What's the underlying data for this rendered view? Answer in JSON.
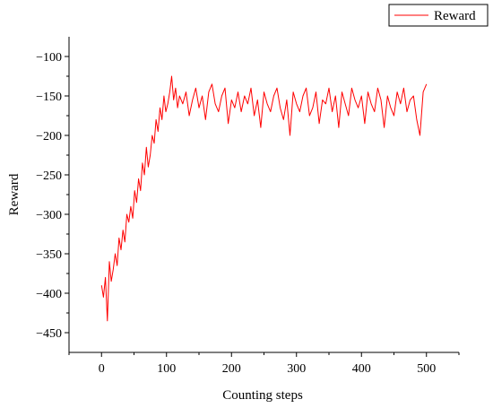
{
  "chart_data": {
    "type": "line",
    "title": "",
    "xlabel": "Counting steps",
    "ylabel": "Reward",
    "xlim": [
      -50,
      550
    ],
    "ylim": [
      -475,
      -75
    ],
    "xticks": [
      0,
      100,
      200,
      300,
      400,
      500
    ],
    "yticks": [
      -450,
      -400,
      -350,
      -300,
      -250,
      -200,
      -150,
      -100
    ],
    "grid": false,
    "legend_position": "top-right",
    "series": [
      {
        "name": "Reward",
        "color": "#ff0000",
        "x": [
          0,
          3,
          6,
          9,
          12,
          15,
          18,
          21,
          24,
          27,
          30,
          33,
          36,
          39,
          42,
          45,
          48,
          51,
          54,
          57,
          60,
          63,
          66,
          69,
          72,
          75,
          78,
          81,
          84,
          87,
          90,
          93,
          96,
          99,
          102,
          105,
          108,
          111,
          114,
          117,
          120,
          125,
          130,
          135,
          140,
          145,
          150,
          155,
          160,
          165,
          170,
          175,
          180,
          185,
          190,
          195,
          200,
          205,
          210,
          215,
          220,
          225,
          230,
          235,
          240,
          245,
          250,
          255,
          260,
          265,
          270,
          275,
          280,
          285,
          290,
          295,
          300,
          305,
          310,
          315,
          320,
          325,
          330,
          335,
          340,
          345,
          350,
          355,
          360,
          365,
          370,
          375,
          380,
          385,
          390,
          395,
          400,
          405,
          410,
          415,
          420,
          425,
          430,
          435,
          440,
          445,
          450,
          455,
          460,
          465,
          470,
          475,
          480,
          485,
          490,
          495,
          500
        ],
        "y": [
          -390,
          -405,
          -380,
          -435,
          -360,
          -385,
          -370,
          -350,
          -365,
          -330,
          -345,
          -320,
          -335,
          -300,
          -310,
          -290,
          -305,
          -270,
          -285,
          -255,
          -270,
          -235,
          -250,
          -215,
          -240,
          -225,
          -200,
          -210,
          -180,
          -195,
          -165,
          -180,
          -150,
          -170,
          -160,
          -145,
          -125,
          -155,
          -140,
          -165,
          -150,
          -160,
          -145,
          -175,
          -155,
          -140,
          -165,
          -150,
          -180,
          -145,
          -135,
          -160,
          -170,
          -150,
          -140,
          -185,
          -155,
          -165,
          -145,
          -170,
          -150,
          -160,
          -140,
          -175,
          -155,
          -190,
          -145,
          -160,
          -170,
          -150,
          -140,
          -165,
          -180,
          -155,
          -200,
          -145,
          -160,
          -170,
          -150,
          -140,
          -175,
          -165,
          -145,
          -185,
          -155,
          -160,
          -140,
          -170,
          -150,
          -190,
          -145,
          -160,
          -175,
          -140,
          -155,
          -165,
          -150,
          -185,
          -145,
          -160,
          -170,
          -140,
          -155,
          -190,
          -150,
          -165,
          -175,
          -145,
          -160,
          -140,
          -170,
          -155,
          -150,
          -180,
          -200,
          -145,
          -135
        ]
      }
    ]
  }
}
